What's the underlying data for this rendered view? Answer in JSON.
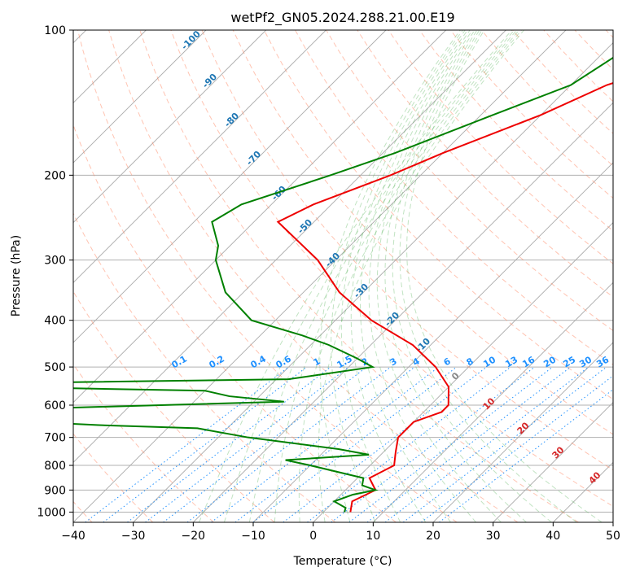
{
  "chart_data": {
    "type": "line",
    "subtype": "skew-T log-P",
    "title": "wetPf2_GN05.2024.288.21.00.E19",
    "xlabel": "Temperature (°C)",
    "ylabel": "Pressure (hPa)",
    "xlim": [
      -40,
      50
    ],
    "ylim": [
      1050,
      100
    ],
    "y_scale": "log",
    "x_ticks": [
      "−40",
      "−30",
      "−20",
      "−10",
      "0",
      "10",
      "20",
      "30",
      "40",
      "50"
    ],
    "y_ticks": [
      100,
      200,
      300,
      400,
      500,
      600,
      700,
      800,
      900,
      1000
    ],
    "grid": "horizontal pressure lines",
    "series": [
      {
        "color": "#ee0000",
        "points": [
          [
            100,
            -5
          ],
          [
            130,
            -24
          ],
          [
            150,
            -30
          ],
          [
            180,
            -40
          ],
          [
            200,
            -45
          ],
          [
            230,
            -53
          ],
          [
            250,
            -56
          ],
          [
            300,
            -43
          ],
          [
            350,
            -34
          ],
          [
            400,
            -24
          ],
          [
            450,
            -13
          ],
          [
            500,
            -5.5
          ],
          [
            550,
            0
          ],
          [
            600,
            3
          ],
          [
            620,
            3
          ],
          [
            650,
            0
          ],
          [
            700,
            0
          ],
          [
            750,
            2
          ],
          [
            800,
            4
          ],
          [
            850,
            2
          ],
          [
            900,
            5
          ],
          [
            950,
            3
          ],
          [
            1000,
            4.5
          ]
        ]
      },
      {
        "color": "#008000",
        "points": [
          [
            100,
            -25
          ],
          [
            130,
            -30
          ],
          [
            150,
            -38
          ],
          [
            180,
            -48
          ],
          [
            200,
            -55
          ],
          [
            230,
            -65
          ],
          [
            250,
            -67
          ],
          [
            280,
            -62
          ],
          [
            300,
            -60
          ],
          [
            350,
            -53
          ],
          [
            400,
            -44
          ],
          [
            430,
            -33
          ],
          [
            450,
            -27
          ],
          [
            480,
            -20
          ],
          [
            500,
            -16
          ],
          [
            530,
            -28
          ],
          [
            540,
            -75
          ],
          [
            550,
            -75
          ],
          [
            560,
            -40
          ],
          [
            575,
            -35
          ],
          [
            590,
            -25
          ],
          [
            610,
            -65
          ],
          [
            640,
            -75
          ],
          [
            660,
            -52
          ],
          [
            670,
            -35
          ],
          [
            700,
            -25
          ],
          [
            740,
            -8
          ],
          [
            760,
            -2
          ],
          [
            780,
            -15
          ],
          [
            800,
            -10
          ],
          [
            850,
            1
          ],
          [
            880,
            2
          ],
          [
            900,
            5
          ],
          [
            920,
            2
          ],
          [
            950,
            0
          ],
          [
            980,
            3
          ],
          [
            1000,
            3.5
          ]
        ]
      }
    ],
    "isotherm_labels": [
      "-100",
      "-90",
      "-80",
      "-70",
      "-60",
      "-50",
      "-40",
      "-30",
      "-20",
      "-10"
    ],
    "mixing_ratio_labels": [
      "0.1",
      "0.2",
      "0.4",
      "0.6",
      "1",
      "1.5",
      "2",
      "3",
      "4",
      "6",
      "8",
      "10",
      "13",
      "16",
      "20",
      "25",
      "30",
      "36"
    ],
    "moist_adiabat_labels": [
      "0",
      "10",
      "20",
      "30",
      "40"
    ]
  }
}
